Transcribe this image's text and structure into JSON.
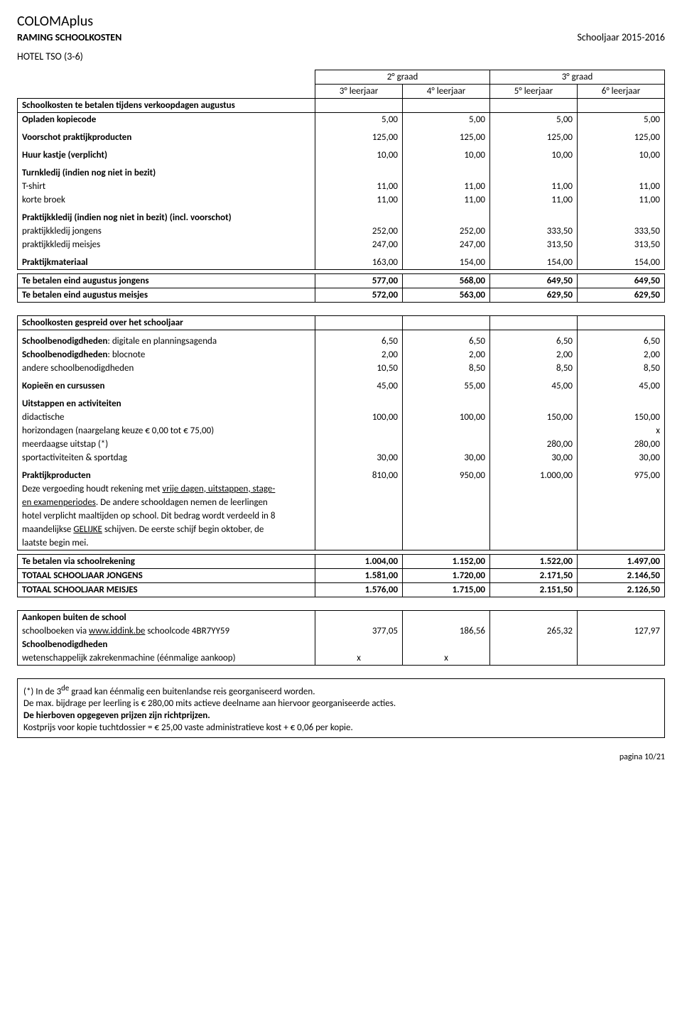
{
  "header": {
    "title": "COLOMAplus",
    "subtitle": "RAMING SCHOOLKOSTEN",
    "year": "Schooljaar 2015-2016",
    "section": "HOTEL TSO (3-6)"
  },
  "table1": {
    "grade_header": {
      "g2": "2° graad",
      "g3": "3° graad"
    },
    "year_header": {
      "y3": "3° leerjaar",
      "y4": "4° leerjaar",
      "y5": "5° leerjaar",
      "y6": "6° leerjaar"
    },
    "rows": {
      "schoolkosten": "Schoolkosten te betalen tijdens verkoopdagen augustus",
      "opladen": {
        "label": "Opladen kopiecode",
        "v": [
          "5,00",
          "5,00",
          "5,00",
          "5,00"
        ]
      },
      "voorschot": {
        "label": "Voorschot praktijkproducten",
        "v": [
          "125,00",
          "125,00",
          "125,00",
          "125,00"
        ]
      },
      "huur": {
        "label": "Huur kastje (verplicht)",
        "v": [
          "10,00",
          "10,00",
          "10,00",
          "10,00"
        ]
      },
      "turnkledij": "Turnkledij (indien nog niet in bezit)",
      "tshirt": {
        "label": "T-shirt",
        "v": [
          "11,00",
          "11,00",
          "11,00",
          "11,00"
        ]
      },
      "broek": {
        "label": "korte broek",
        "v": [
          "11,00",
          "11,00",
          "11,00",
          "11,00"
        ]
      },
      "praktijkkledij": "Praktijkkledij (indien nog niet in bezit) (incl. voorschot)",
      "jongens": {
        "label": "praktijkkledij jongens",
        "v": [
          "252,00",
          "252,00",
          "333,50",
          "333,50"
        ]
      },
      "meisjes": {
        "label": "praktijkkledij meisjes",
        "v": [
          "247,00",
          "247,00",
          "313,50",
          "313,50"
        ]
      },
      "materiaal": {
        "label": "Praktijkmateriaal",
        "v": [
          "163,00",
          "154,00",
          "154,00",
          "154,00"
        ]
      },
      "eind_jongens": {
        "label": "Te betalen eind augustus jongens",
        "v": [
          "577,00",
          "568,00",
          "649,50",
          "649,50"
        ]
      },
      "eind_meisjes": {
        "label": "Te betalen eind augustus meisjes",
        "v": [
          "572,00",
          "563,00",
          "629,50",
          "629,50"
        ]
      }
    }
  },
  "table2": {
    "header": "Schoolkosten gespreid over het schooljaar",
    "rows": {
      "digitale": {
        "label": "Schoolbenodigdheden: digitale en planningsagenda",
        "label_bold_prefix": "Schoolbenodigdheden",
        "label_rest": ": digitale en planningsagenda",
        "v": [
          "6,50",
          "6,50",
          "6,50",
          "6,50"
        ]
      },
      "blocnote": {
        "label_bold_prefix": "Schoolbenodigdheden",
        "label_rest": ": blocnote",
        "v": [
          "2,00",
          "2,00",
          "2,00",
          "2,00"
        ]
      },
      "andere": {
        "label": "andere schoolbenodigdheden",
        "v": [
          "10,50",
          "8,50",
          "8,50",
          "8,50"
        ]
      },
      "kopieen": {
        "label": "Kopieën en cursussen",
        "v": [
          "45,00",
          "55,00",
          "45,00",
          "45,00"
        ]
      },
      "uitstappen_hdr": "Uitstappen en activiteiten",
      "didactische": {
        "label": "didactische",
        "v": [
          "100,00",
          "100,00",
          "150,00",
          "150,00"
        ]
      },
      "horizon": {
        "label": "horizondagen (naargelang keuze € 0,00 tot € 75,00)",
        "v": [
          "",
          "",
          "",
          "x"
        ]
      },
      "meerdaagse": {
        "label": "meerdaagse uitstap (*)",
        "v": [
          "",
          "",
          "280,00",
          "280,00"
        ]
      },
      "sport": {
        "label": "sportactiviteiten & sportdag",
        "v": [
          "30,00",
          "30,00",
          "30,00",
          "30,00"
        ]
      },
      "praktijkprod": {
        "label": "Praktijkproducten",
        "v": [
          "810,00",
          "950,00",
          "1.000,00",
          "975,00"
        ]
      },
      "praktijk_text_1a": "Deze vergoeding houdt rekening met ",
      "praktijk_text_1b": "vrije dagen, uitstappen, stage-",
      "praktijk_text_2a": "en examenperiodes",
      "praktijk_text_2b": ". De andere schooldagen nemen de leerlingen",
      "praktijk_text_3": "hotel verplicht maaltijden op school. Dit bedrag wordt verdeeld in 8",
      "praktijk_text_4a": "maandelijkse ",
      "praktijk_text_4b": "GELIJKE",
      "praktijk_text_4c": " schijven. De eerste schijf begin oktober, de",
      "praktijk_text_5": "laatste begin mei.",
      "via_rekening": {
        "label": "Te betalen via schoolrekening",
        "v": [
          "1.004,00",
          "1.152,00",
          "1.522,00",
          "1.497,00"
        ]
      },
      "totaal_j": {
        "label": "TOTAAL SCHOOLJAAR JONGENS",
        "v": [
          "1.581,00",
          "1.720,00",
          "2.171,50",
          "2.146,50"
        ]
      },
      "totaal_m": {
        "label": "TOTAAL SCHOOLJAAR MEISJES",
        "v": [
          "1.576,00",
          "1.715,00",
          "2.151,50",
          "2.126,50"
        ]
      }
    }
  },
  "table3": {
    "header": "Aankopen buiten de school",
    "rows": {
      "schoolboeken": {
        "pre": "schoolboeken via ",
        "link": "www.iddink.be",
        "post": " schoolcode 4BR7YY59",
        "v": [
          "377,05",
          "186,56",
          "265,32",
          "127,97"
        ]
      },
      "benodigd_hdr": "Schoolbenodigdheden",
      "rekenmachine": {
        "label": "wetenschappelijk zakrekenmachine  (éénmalige aankoop)",
        "v": [
          "x",
          "x",
          "",
          ""
        ]
      }
    }
  },
  "footnotes": {
    "l1a": "(*) In de 3",
    "l1b": "de",
    "l1c": " graad kan éénmalig een buitenlandse reis georganiseerd worden.",
    "l2": "De max. bijdrage per leerling is € 280,00 mits actieve deelname aan hiervoor georganiseerde acties.",
    "l3": "De hierboven opgegeven prijzen zijn richtprijzen.",
    "l4": "Kostprijs voor kopie tuchtdossier =  € 25,00 vaste administratieve kost + € 0,06 per kopie."
  },
  "page": "pagina 10/21"
}
